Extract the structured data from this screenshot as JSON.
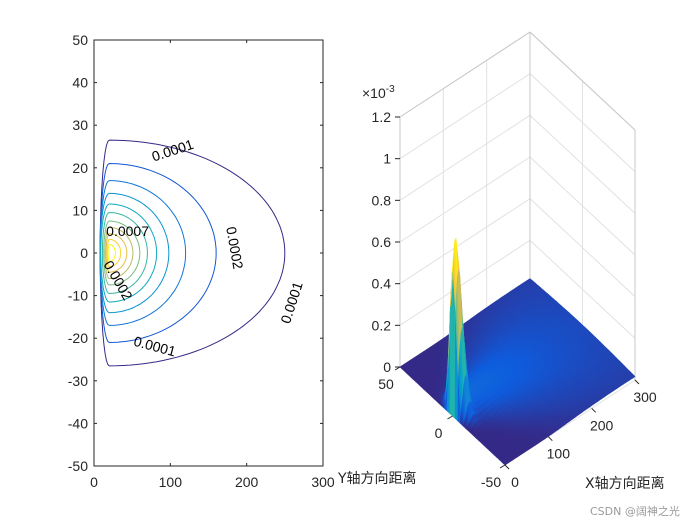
{
  "chart_data": [
    {
      "type": "contour",
      "xlim": [
        0,
        300
      ],
      "ylim": [
        -50,
        50
      ],
      "x_ticks": [
        "0",
        "100",
        "200",
        "300"
      ],
      "y_ticks": [
        "50",
        "40",
        "30",
        "20",
        "10",
        "0",
        "-10",
        "-20",
        "-30",
        "-40",
        "-50"
      ],
      "colormap": "parula",
      "levels": [
        0.0001,
        0.0002,
        0.0003,
        0.0004,
        0.0005,
        0.0006,
        0.0007,
        0.0008,
        0.0009,
        0.001,
        0.0011
      ],
      "level_labels": [
        "0.0001",
        "0.0001",
        "0.0002",
        "0.0002",
        "0.0001",
        "0.0007"
      ],
      "grid": false
    },
    {
      "type": "surface",
      "xlim": [
        0,
        300
      ],
      "ylim": [
        -50,
        50
      ],
      "zlim": [
        0,
        0.0012
      ],
      "x_ticks": [
        "0",
        "100",
        "200",
        "300"
      ],
      "y_ticks": [
        "50",
        "0",
        "-50"
      ],
      "z_ticks": [
        "0",
        "0.2",
        "0.4",
        "0.6",
        "0.8",
        "1",
        "1.2"
      ],
      "z_exponent": "×10-3",
      "xlabel": "X轴方向距离",
      "ylabel": "Y轴方向距离",
      "peak": {
        "x": 5,
        "y": 0,
        "z": 0.00079
      },
      "colormap": "parula",
      "grid": true
    }
  ],
  "watermark": "CSDN @阔神之光"
}
